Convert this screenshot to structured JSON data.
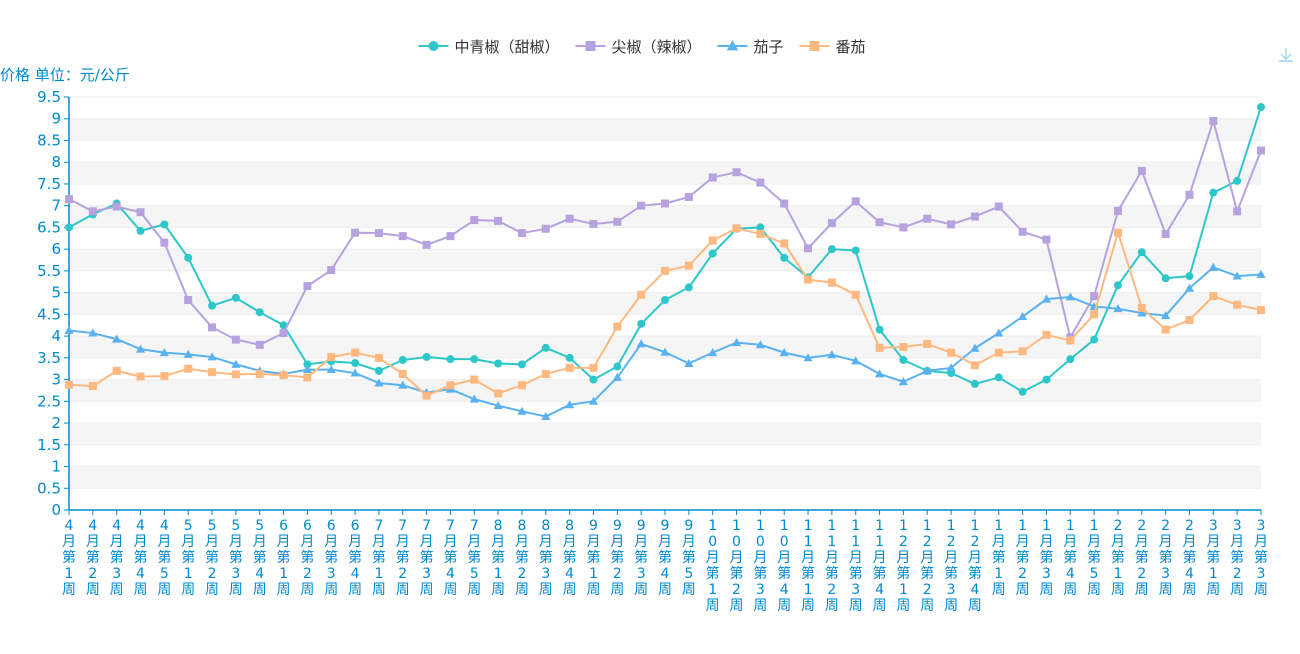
{
  "chart_data": {
    "type": "line",
    "title": "",
    "ylabel": "价格 单位：元/公斤",
    "xlabel": "",
    "ylim": [
      0,
      9.5
    ],
    "y_ticks": [
      "0",
      "0.5",
      "1",
      "1.5",
      "2",
      "2.5",
      "3",
      "3.5",
      "4",
      "4.5",
      "5",
      "5.5",
      "6",
      "6.5",
      "7",
      "7.5",
      "8",
      "8.5",
      "9",
      "9.5"
    ],
    "grid": true,
    "legend_position": "top-center",
    "categories": [
      "4月第1周",
      "4月第2周",
      "4月第3周",
      "4月第4周",
      "4月第5周",
      "5月第1周",
      "5月第2周",
      "5月第3周",
      "5月第4周",
      "6月第1周",
      "6月第2周",
      "6月第3周",
      "6月第4周",
      "7月第1周",
      "7月第2周",
      "7月第3周",
      "7月第4周",
      "7月第5周",
      "8月第1周",
      "8月第2周",
      "8月第3周",
      "8月第4周",
      "9月第1周",
      "9月第2周",
      "9月第3周",
      "9月第4周",
      "9月第5周",
      "10月第1周",
      "10月第2周",
      "10月第3周",
      "10月第4周",
      "11月第1周",
      "11月第2周",
      "11月第3周",
      "11月第4周",
      "12月第1周",
      "12月第2周",
      "12月第3周",
      "12月第4周",
      "1月第1周",
      "1月第2周",
      "1月第3周",
      "1月第4周",
      "1月第5周",
      "2月第1周",
      "2月第2周",
      "2月第3周",
      "2月第4周",
      "3月第1周",
      "3月第2周",
      "3月第3周"
    ],
    "series": [
      {
        "name": "中青椒（甜椒）",
        "color": "#2ec7c9",
        "marker": "circle",
        "values": [
          6.5,
          6.8,
          7.05,
          6.42,
          6.57,
          5.8,
          4.7,
          4.88,
          4.55,
          4.25,
          3.35,
          3.42,
          3.38,
          3.2,
          3.45,
          3.52,
          3.47,
          3.47,
          3.37,
          3.35,
          3.73,
          3.5,
          3.0,
          3.3,
          4.28,
          4.83,
          5.12,
          5.9,
          6.47,
          6.5,
          5.8,
          5.35,
          6.0,
          5.97,
          4.15,
          3.45,
          3.2,
          3.15,
          2.9,
          3.05,
          2.72,
          3.0,
          3.47,
          3.92,
          5.17,
          5.93,
          5.33,
          5.38,
          7.3,
          7.57,
          9.27
        ]
      },
      {
        "name": "尖椒（辣椒）",
        "color": "#b6a2de",
        "marker": "square",
        "values": [
          7.15,
          6.87,
          6.98,
          6.85,
          6.15,
          4.83,
          4.2,
          3.92,
          3.8,
          4.07,
          5.15,
          5.52,
          6.38,
          6.37,
          6.3,
          6.1,
          6.3,
          6.67,
          6.65,
          6.37,
          6.47,
          6.7,
          6.58,
          6.63,
          7.0,
          7.05,
          7.2,
          7.65,
          7.77,
          7.53,
          7.05,
          6.02,
          6.6,
          7.1,
          6.62,
          6.5,
          6.7,
          6.57,
          6.75,
          6.98,
          6.4,
          6.22,
          3.97,
          4.92,
          6.88,
          7.8,
          6.35,
          7.25,
          8.95,
          6.87,
          8.27
        ]
      },
      {
        "name": "茄子",
        "color": "#5ab1ef",
        "marker": "triangle",
        "values": [
          4.13,
          4.07,
          3.93,
          3.7,
          3.62,
          3.58,
          3.52,
          3.35,
          3.2,
          3.13,
          3.23,
          3.23,
          3.15,
          2.92,
          2.87,
          2.7,
          2.78,
          2.55,
          2.4,
          2.27,
          2.15,
          2.42,
          2.5,
          3.05,
          3.82,
          3.63,
          3.37,
          3.62,
          3.85,
          3.8,
          3.62,
          3.5,
          3.57,
          3.43,
          3.13,
          2.95,
          3.2,
          3.27,
          3.72,
          4.07,
          4.45,
          4.85,
          4.9,
          4.68,
          4.63,
          4.53,
          4.47,
          5.1,
          5.58,
          5.38,
          5.42
        ]
      },
      {
        "name": "番茄",
        "color": "#ffb980",
        "marker": "square",
        "values": [
          2.88,
          2.85,
          3.2,
          3.07,
          3.08,
          3.25,
          3.17,
          3.12,
          3.13,
          3.1,
          3.05,
          3.52,
          3.62,
          3.5,
          3.13,
          2.63,
          2.87,
          3.0,
          2.68,
          2.87,
          3.13,
          3.27,
          3.27,
          4.22,
          4.95,
          5.5,
          5.62,
          6.2,
          6.48,
          6.35,
          6.13,
          5.3,
          5.23,
          4.95,
          3.73,
          3.75,
          3.82,
          3.62,
          3.33,
          3.62,
          3.65,
          4.03,
          3.9,
          4.5,
          6.38,
          4.65,
          4.15,
          4.37,
          4.92,
          4.72,
          4.6
        ]
      }
    ]
  },
  "toolbar": {
    "download_icon": "download-icon"
  }
}
